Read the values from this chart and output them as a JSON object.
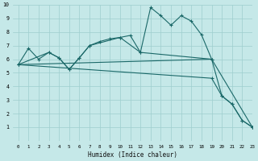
{
  "xlabel": "Humidex (Indice chaleur)",
  "bg_color": "#c5e8e8",
  "grid_color": "#9ecece",
  "line_color": "#1a6868",
  "xlim": [
    -0.5,
    23
  ],
  "ylim": [
    0,
    10
  ],
  "xticks": [
    0,
    1,
    2,
    3,
    4,
    5,
    6,
    7,
    8,
    9,
    10,
    11,
    12,
    13,
    14,
    15,
    16,
    17,
    18,
    19,
    20,
    21,
    22,
    23
  ],
  "yticks": [
    1,
    2,
    3,
    4,
    5,
    6,
    7,
    8,
    9,
    10
  ],
  "line1_x": [
    0,
    1,
    2,
    3,
    4,
    5,
    6,
    7,
    8,
    9,
    10,
    11,
    12,
    13,
    14,
    15,
    16,
    17,
    18,
    19,
    20,
    21,
    22,
    23
  ],
  "line1_y": [
    5.6,
    6.8,
    6.0,
    6.5,
    6.1,
    5.25,
    6.1,
    7.0,
    7.3,
    7.5,
    7.6,
    7.75,
    6.5,
    9.8,
    9.2,
    8.5,
    9.2,
    8.8,
    7.8,
    6.0,
    3.3,
    2.7,
    1.5,
    1.0
  ],
  "line2_x": [
    0,
    3,
    4,
    5,
    6,
    7,
    10,
    12,
    19,
    23
  ],
  "line2_y": [
    5.6,
    6.5,
    6.1,
    5.25,
    6.1,
    7.0,
    7.6,
    6.5,
    6.0,
    1.0
  ],
  "line3_x": [
    0,
    19
  ],
  "line3_y": [
    5.6,
    6.0
  ],
  "line4_x": [
    0,
    19,
    20,
    21,
    22,
    23
  ],
  "line4_y": [
    5.6,
    4.6,
    3.3,
    2.7,
    1.5,
    1.0
  ]
}
